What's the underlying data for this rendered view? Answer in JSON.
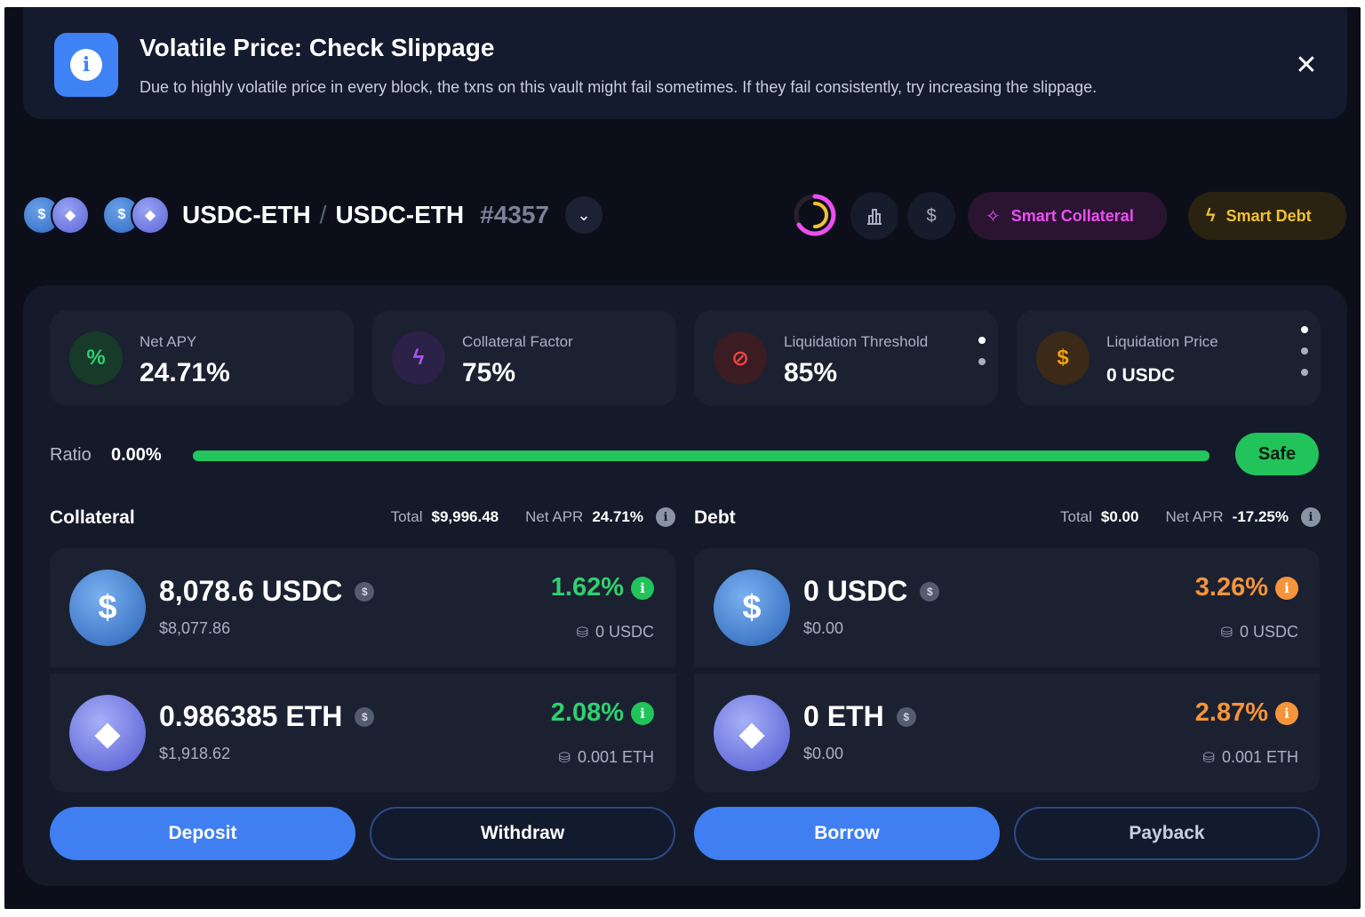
{
  "banner": {
    "title": "Volatile Price: Check Slippage",
    "message": "Due to highly volatile price in every block, the txns on this vault might fail sometimes. If they fail consistently, try increasing the slippage.",
    "icon": "info-icon",
    "close_icon": "close-icon"
  },
  "header": {
    "collateral_pair": "USDC-ETH",
    "separator": "/",
    "debt_pair": "USDC-ETH",
    "vault_id": "#4357",
    "smart_collateral_label": "Smart Collateral",
    "smart_debt_label": "Smart Debt"
  },
  "stats": [
    {
      "label": "Net APY",
      "value": "24.71%",
      "icon": "percent-icon",
      "color": "#2fd170"
    },
    {
      "label": "Collateral Factor",
      "value": "75%",
      "icon": "bolt-icon",
      "color": "#a855f7"
    },
    {
      "label": "Liquidation Threshold",
      "value": "85%",
      "icon": "ban-icon",
      "color": "#ef4444"
    },
    {
      "label": "Liquidation Price",
      "value": "0 USDC",
      "icon": "dollar-icon",
      "color": "#f59e0b"
    }
  ],
  "ratio": {
    "label": "Ratio",
    "value": "0.00%",
    "fill_fraction": 1.0,
    "status": "Safe"
  },
  "collateral": {
    "title": "Collateral",
    "total_label": "Total",
    "total_value": "$9,996.48",
    "apr_label": "Net APR",
    "apr_value": "24.71%",
    "assets": [
      {
        "amount": "8,078.6 USDC",
        "usd": "$8,077.86",
        "rate": "1.62%",
        "min": "0 USDC"
      },
      {
        "amount": "0.986385 ETH",
        "usd": "$1,918.62",
        "rate": "2.08%",
        "min": "0.001 ETH"
      }
    ]
  },
  "debt": {
    "title": "Debt",
    "total_label": "Total",
    "total_value": "$0.00",
    "apr_label": "Net APR",
    "apr_value": "-17.25%",
    "assets": [
      {
        "amount": "0 USDC",
        "usd": "$0.00",
        "rate": "3.26%",
        "min": "0 USDC"
      },
      {
        "amount": "0 ETH",
        "usd": "$0.00",
        "rate": "2.87%",
        "min": "0.001 ETH"
      }
    ]
  },
  "actions": {
    "deposit": "Deposit",
    "withdraw": "Withdraw",
    "borrow": "Borrow",
    "payback": "Payback"
  },
  "colors": {
    "accent": "#3f7ff2",
    "safe": "#22c35a",
    "positive_rate": "#2fd170",
    "negative_rate": "#f5943a",
    "smart_collateral": "#ec4ff0",
    "smart_debt": "#f2c230"
  }
}
